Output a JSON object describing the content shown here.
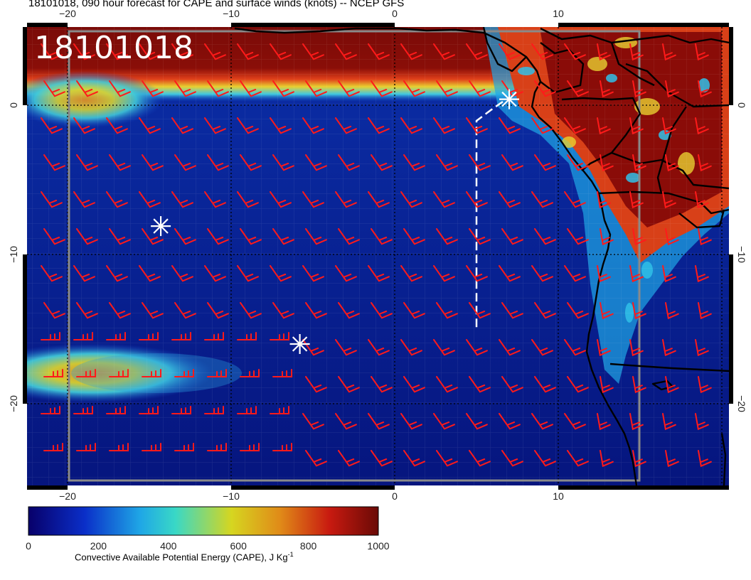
{
  "title": "18101018, 090 hour forecast for CAPE and surface winds (knots) -- NCEP GFS",
  "stamp": "18101018",
  "map": {
    "lon_ticks": [
      "−20",
      "−10",
      "0",
      "10"
    ],
    "lat_ticks": [
      "0",
      "−10",
      "−20"
    ],
    "wind_barb_color": "#ff1a1a",
    "coastline_color": "#000000",
    "marker_color": "#ffffff",
    "markers": [
      {
        "name": "star-1",
        "lon": 7.0,
        "lat": 0.4
      },
      {
        "name": "star-2",
        "lon": -14.3,
        "lat": -8.1
      },
      {
        "name": "star-3",
        "lon": -5.8,
        "lat": -16.0
      }
    ]
  },
  "colorbar": {
    "title": "Convective Available Potential Energy (CAPE), J Kg",
    "title_superscript": "-1",
    "ticks": [
      "0",
      "200",
      "400",
      "600",
      "800",
      "1000"
    ],
    "colors": [
      "#08006a",
      "#0a2ec8",
      "#1fa7e6",
      "#39d8c6",
      "#d6d620",
      "#e08a18",
      "#c81a10",
      "#6a0a06"
    ]
  }
}
